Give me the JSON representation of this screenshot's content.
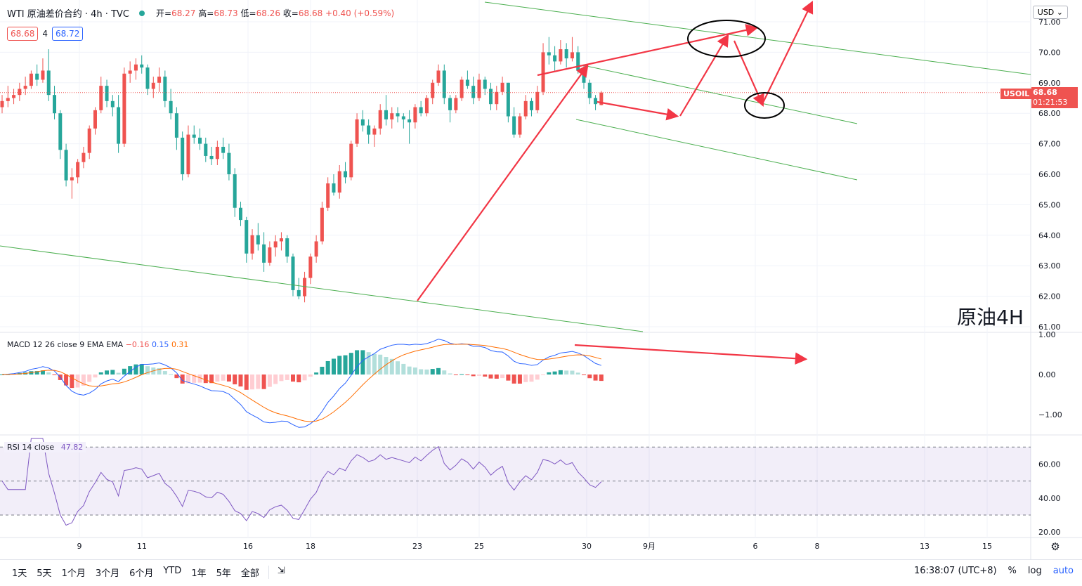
{
  "header": {
    "title": "WTI 原油差价合约 · 4h · TVC",
    "ohlc": [
      {
        "label": "开",
        "value": "68.27"
      },
      {
        "label": "高",
        "value": "68.73"
      },
      {
        "label": "低",
        "value": "68.26"
      },
      {
        "label": "收",
        "value": "68.68"
      }
    ],
    "change": "+0.40 (+0.59%)",
    "bid": "68.68",
    "spread": "4",
    "ask": "68.72"
  },
  "currency_button": "USD",
  "annotation_label": "原油4H",
  "symbol_tag": "USOIL",
  "price_tag": "68.68",
  "countdown": "01:21:53",
  "macd_label": "MACD 12 26 close 9 EMA EMA",
  "macd_values": [
    "−0.16",
    "0.15",
    "0.31"
  ],
  "rsi_label": "RSI 14 close",
  "rsi_value": "47.82",
  "timeframes": [
    "1天",
    "5天",
    "1个月",
    "3个月",
    "6个月",
    "YTD",
    "1年",
    "5年",
    "全部"
  ],
  "clock": "16:38:07 (UTC+8)",
  "scale_options": [
    "%",
    "log",
    "auto"
  ],
  "colors": {
    "up": "#ef5350",
    "down": "#26a69a",
    "macd": "#2962ff",
    "signal": "#ff6d00",
    "rsi": "#7e57c2"
  },
  "chart_data": [
    {
      "type": "candlestick",
      "title": "WTI 原油差价合约 · 4h · TVC",
      "x_tick_labels": [
        "9",
        "11",
        "16",
        "18",
        "23",
        "25",
        "30",
        "9月",
        "6",
        "8",
        "13",
        "15"
      ],
      "y_tick_labels": [
        "61.00",
        "62.00",
        "63.00",
        "64.00",
        "65.00",
        "66.00",
        "67.00",
        "68.00",
        "69.00",
        "70.00",
        "71.00"
      ],
      "ylim": [
        60.9,
        71.6
      ],
      "last_price": 68.68,
      "candles": [
        [
          68.2,
          68.6,
          68.0,
          68.4
        ],
        [
          68.4,
          68.9,
          68.2,
          68.5
        ],
        [
          68.5,
          68.8,
          68.3,
          68.6
        ],
        [
          68.6,
          69.0,
          68.4,
          68.8
        ],
        [
          68.8,
          69.2,
          68.6,
          68.9
        ],
        [
          68.9,
          69.4,
          68.8,
          69.3
        ],
        [
          69.3,
          69.6,
          68.9,
          69.1
        ],
        [
          69.1,
          69.8,
          69.0,
          69.4
        ],
        [
          69.4,
          70.1,
          68.4,
          68.6
        ],
        [
          68.6,
          68.9,
          67.8,
          68.0
        ],
        [
          68.0,
          68.1,
          66.5,
          66.8
        ],
        [
          66.8,
          67.0,
          65.6,
          65.8
        ],
        [
          65.8,
          66.2,
          65.2,
          65.9
        ],
        [
          65.9,
          66.5,
          65.7,
          66.4
        ],
        [
          66.4,
          66.9,
          66.2,
          66.7
        ],
        [
          66.7,
          67.6,
          66.5,
          67.5
        ],
        [
          67.5,
          68.2,
          67.3,
          68.1
        ],
        [
          68.1,
          69.2,
          68.0,
          68.9
        ],
        [
          68.9,
          69.1,
          68.2,
          68.4
        ],
        [
          68.4,
          68.6,
          67.9,
          68.2
        ],
        [
          68.2,
          68.6,
          66.7,
          67.0
        ],
        [
          67.0,
          69.5,
          66.9,
          69.3
        ],
        [
          69.3,
          69.7,
          69.0,
          69.4
        ],
        [
          69.4,
          69.8,
          69.1,
          69.6
        ],
        [
          69.6,
          69.9,
          69.3,
          69.5
        ],
        [
          69.5,
          69.6,
          68.6,
          68.8
        ],
        [
          68.8,
          69.2,
          68.5,
          69.0
        ],
        [
          69.0,
          69.5,
          68.7,
          69.2
        ],
        [
          69.2,
          69.4,
          68.2,
          68.4
        ],
        [
          68.4,
          68.8,
          67.8,
          68.0
        ],
        [
          68.0,
          68.2,
          66.8,
          67.2
        ],
        [
          67.2,
          67.4,
          65.8,
          66.0
        ],
        [
          66.0,
          67.6,
          65.9,
          67.3
        ],
        [
          67.3,
          67.6,
          67.0,
          67.2
        ],
        [
          67.2,
          67.5,
          66.8,
          67.0
        ],
        [
          67.0,
          67.2,
          66.4,
          66.6
        ],
        [
          66.6,
          66.9,
          66.3,
          66.5
        ],
        [
          66.5,
          67.1,
          66.3,
          66.9
        ],
        [
          66.9,
          67.2,
          66.5,
          66.7
        ],
        [
          66.7,
          67.0,
          65.8,
          66.0
        ],
        [
          66.0,
          66.2,
          64.6,
          64.9
        ],
        [
          64.9,
          65.1,
          64.3,
          64.5
        ],
        [
          64.5,
          64.6,
          63.1,
          63.4
        ],
        [
          63.4,
          64.2,
          63.2,
          64.0
        ],
        [
          64.0,
          64.4,
          63.5,
          63.7
        ],
        [
          63.7,
          64.1,
          62.8,
          63.1
        ],
        [
          63.1,
          63.8,
          63.0,
          63.6
        ],
        [
          63.6,
          64.0,
          63.3,
          63.8
        ],
        [
          63.8,
          64.1,
          63.5,
          63.9
        ],
        [
          63.9,
          64.0,
          63.1,
          63.3
        ],
        [
          63.3,
          63.4,
          62.0,
          62.2
        ],
        [
          62.2,
          62.6,
          61.9,
          62.0
        ],
        [
          62.0,
          62.8,
          61.8,
          62.6
        ],
        [
          62.6,
          63.4,
          62.4,
          63.3
        ],
        [
          63.3,
          64.0,
          63.1,
          63.8
        ],
        [
          63.8,
          65.1,
          63.7,
          64.9
        ],
        [
          64.9,
          65.9,
          64.8,
          65.7
        ],
        [
          65.7,
          66.0,
          65.3,
          65.4
        ],
        [
          65.4,
          66.3,
          65.2,
          66.1
        ],
        [
          66.1,
          66.4,
          65.7,
          65.9
        ],
        [
          65.9,
          67.1,
          65.8,
          67.0
        ],
        [
          67.0,
          68.0,
          66.9,
          67.8
        ],
        [
          67.8,
          68.1,
          67.4,
          67.6
        ],
        [
          67.6,
          67.8,
          67.0,
          67.3
        ],
        [
          67.3,
          67.6,
          66.9,
          67.5
        ],
        [
          67.5,
          68.3,
          67.3,
          68.1
        ],
        [
          68.1,
          68.6,
          67.6,
          67.8
        ],
        [
          67.8,
          68.2,
          67.5,
          68.0
        ],
        [
          68.0,
          68.2,
          67.7,
          67.9
        ],
        [
          67.9,
          68.0,
          67.5,
          67.8
        ],
        [
          67.8,
          68.1,
          67.0,
          67.7
        ],
        [
          67.7,
          68.3,
          67.5,
          68.2
        ],
        [
          68.2,
          68.4,
          67.9,
          68.0
        ],
        [
          68.0,
          68.6,
          67.9,
          68.5
        ],
        [
          68.5,
          69.1,
          68.3,
          69.0
        ],
        [
          69.0,
          69.6,
          68.9,
          69.4
        ],
        [
          69.4,
          69.6,
          68.3,
          68.5
        ],
        [
          68.5,
          68.6,
          67.7,
          68.1
        ],
        [
          68.1,
          68.6,
          68.0,
          68.5
        ],
        [
          68.5,
          69.2,
          68.4,
          69.1
        ],
        [
          69.1,
          69.4,
          68.8,
          68.9
        ],
        [
          68.9,
          69.2,
          68.3,
          68.5
        ],
        [
          68.5,
          69.3,
          68.4,
          69.1
        ],
        [
          69.1,
          69.2,
          68.6,
          68.8
        ],
        [
          68.8,
          69.0,
          68.1,
          68.3
        ],
        [
          68.3,
          68.9,
          68.1,
          68.7
        ],
        [
          68.7,
          69.2,
          68.6,
          69.0
        ],
        [
          69.0,
          69.0,
          67.7,
          67.9
        ],
        [
          67.9,
          68.2,
          67.2,
          67.3
        ],
        [
          67.3,
          68.0,
          67.2,
          67.9
        ],
        [
          67.9,
          68.6,
          67.8,
          68.4
        ],
        [
          68.4,
          68.5,
          67.9,
          68.1
        ],
        [
          68.1,
          68.9,
          68.0,
          68.7
        ],
        [
          68.7,
          70.3,
          68.6,
          70.0
        ],
        [
          70.0,
          70.5,
          69.6,
          69.9
        ],
        [
          69.9,
          70.2,
          69.4,
          69.7
        ],
        [
          69.7,
          70.4,
          69.6,
          70.1
        ],
        [
          70.1,
          70.3,
          69.5,
          69.8
        ],
        [
          69.8,
          70.5,
          69.7,
          70.0
        ],
        [
          70.0,
          70.2,
          69.3,
          69.4
        ],
        [
          69.4,
          69.6,
          68.8,
          69.0
        ],
        [
          69.0,
          69.1,
          68.3,
          68.5
        ],
        [
          68.5,
          68.6,
          68.1,
          68.3
        ],
        [
          68.27,
          68.73,
          68.26,
          68.68
        ]
      ]
    },
    {
      "type": "line",
      "title": "MACD 12 26 close 9 EMA EMA",
      "y_tick_labels": [
        "1.00",
        "0.00",
        "−1.00"
      ],
      "values": {
        "histogram": -0.16,
        "macd": 0.15,
        "signal": 0.31
      }
    },
    {
      "type": "line",
      "title": "RSI 14 close",
      "value": 47.82,
      "y_tick_labels": [
        "60.00",
        "40.00",
        "20.00"
      ],
      "bands": [
        70,
        50,
        30
      ]
    }
  ]
}
